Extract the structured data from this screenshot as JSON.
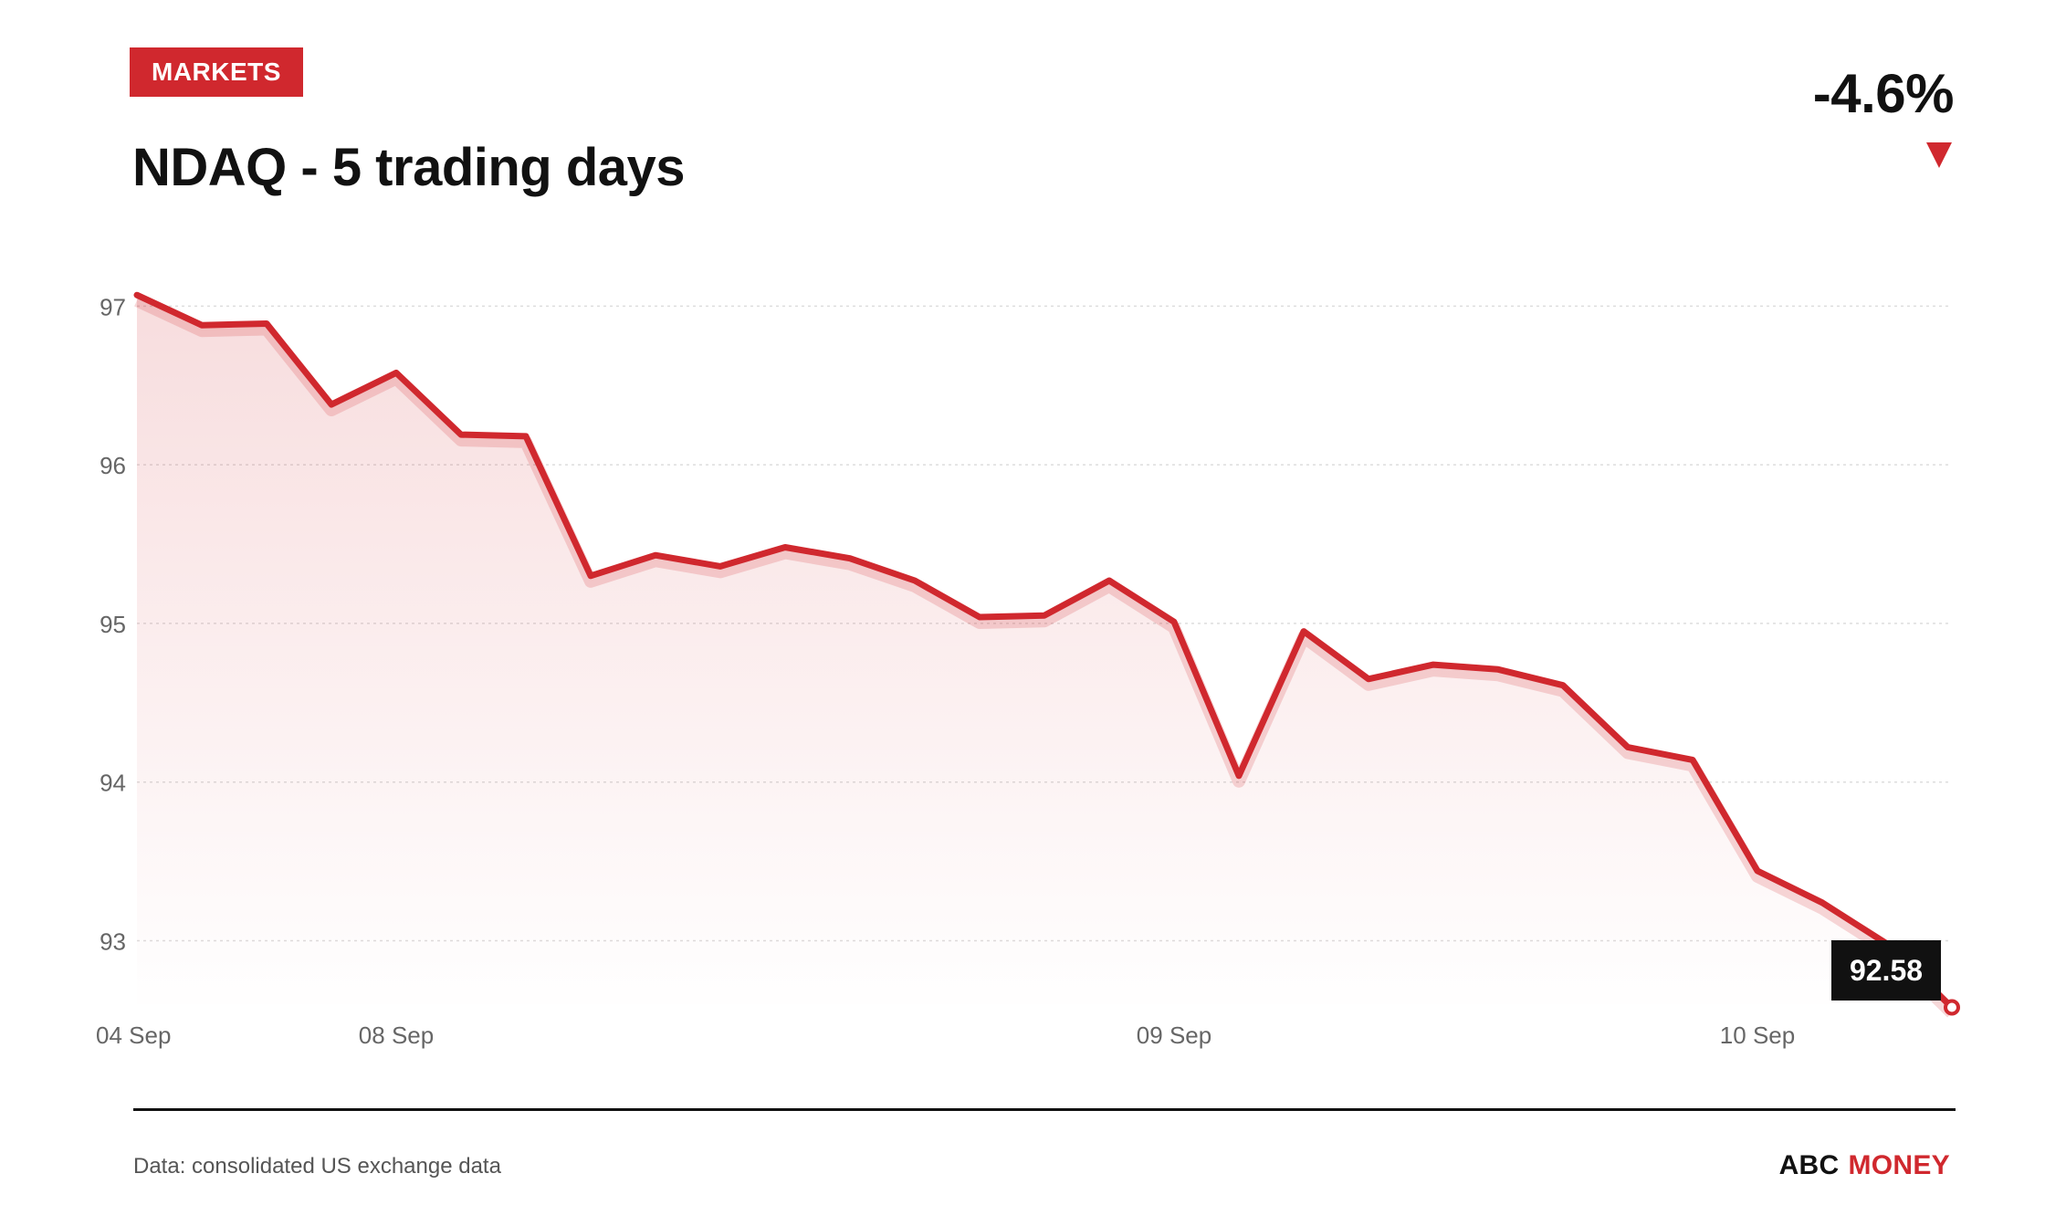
{
  "header": {
    "badge": "MARKETS",
    "title": "NDAQ - 5 trading days",
    "change": "-4.6%"
  },
  "colors": {
    "accent": "#d0282e",
    "grid": "#dddddd",
    "text": "#111111",
    "muted": "#666666"
  },
  "chart_data": {
    "type": "area",
    "title": "NDAQ - 5 trading days",
    "ylim": [
      92.6,
      97.1
    ],
    "y_ticks": [
      93,
      94,
      95,
      96,
      97
    ],
    "grid": "horizontal dotted",
    "x_ticks": [
      {
        "label": "04 Sep",
        "index": 0
      },
      {
        "label": "08 Sep",
        "index": 4
      },
      {
        "label": "09 Sep",
        "index": 16
      },
      {
        "label": "10 Sep",
        "index": 25
      }
    ],
    "values": [
      97.07,
      96.88,
      96.89,
      96.38,
      96.58,
      96.19,
      96.18,
      95.3,
      95.43,
      95.36,
      95.48,
      95.41,
      95.27,
      95.04,
      95.05,
      95.27,
      95.01,
      94.04,
      94.95,
      94.65,
      94.74,
      94.71,
      94.61,
      94.22,
      94.14,
      93.44,
      93.24,
      92.98,
      92.58
    ],
    "last_value_label": "92.58"
  },
  "footer": {
    "source": "Data: consolidated US exchange data",
    "brand_primary": "ABC",
    "brand_secondary": "MONEY"
  }
}
